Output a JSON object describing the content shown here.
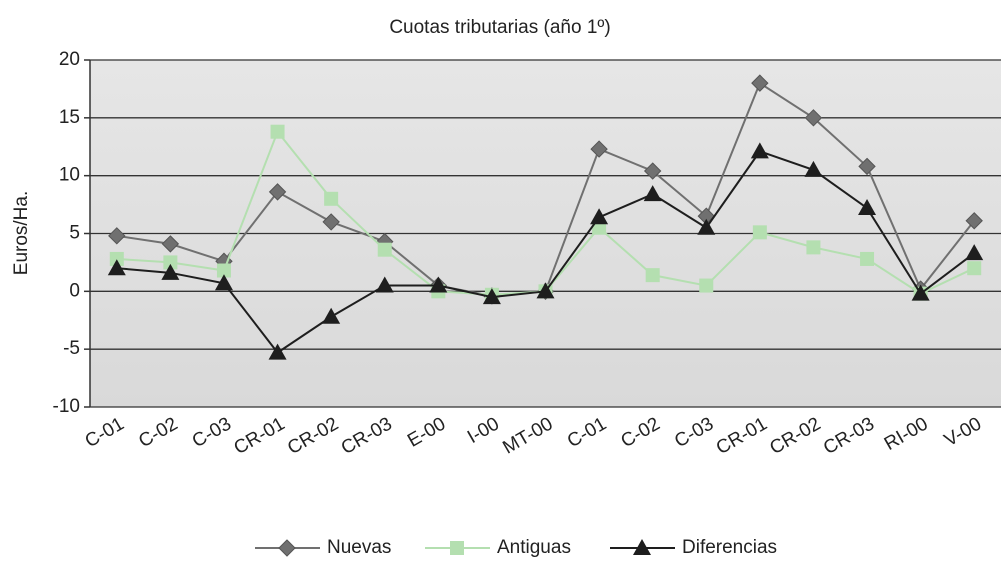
{
  "chart_data": {
    "type": "line",
    "title": "Cuotas tributarias (año 1º)",
    "y_label": "Euros/Ha.",
    "categories": [
      "C-01",
      "C-02",
      "C-03",
      "CR-01",
      "CR-02",
      "CR-03",
      "E-00",
      "I-00",
      "MT-00",
      "C-01",
      "C-02",
      "C-03",
      "CR-01",
      "CR-02",
      "CR-03",
      "RI-00",
      "V-00"
    ],
    "series": [
      {
        "name": "Nuevas",
        "color": "#707070",
        "marker": "diamond",
        "values": [
          4.8,
          4.1,
          2.6,
          8.6,
          6.0,
          4.3,
          0.5,
          -0.4,
          0,
          12.3,
          10.4,
          6.5,
          18,
          15,
          10.8,
          0.2,
          6.1
        ]
      },
      {
        "name": "Antiguas",
        "color": "#b4dfb0",
        "marker": "square",
        "values": [
          2.8,
          2.5,
          1.8,
          13.8,
          8.0,
          3.6,
          0,
          -0.3,
          0,
          5.5,
          1.4,
          0.5,
          5.1,
          3.8,
          2.8,
          -0.2,
          2.0
        ]
      },
      {
        "name": "Diferencias",
        "color": "#1e1e1e",
        "marker": "triangle",
        "values": [
          2.0,
          1.6,
          0.7,
          -5.3,
          -2.2,
          0.5,
          0.5,
          -0.5,
          0,
          6.4,
          8.4,
          5.5,
          12.1,
          10.5,
          7.2,
          -0.2,
          3.3
        ]
      }
    ],
    "ylim": [
      -10,
      20
    ],
    "yticks": [
      20,
      15,
      10,
      5,
      0,
      -5,
      -10
    ],
    "grid": true,
    "legend": "bottom"
  }
}
